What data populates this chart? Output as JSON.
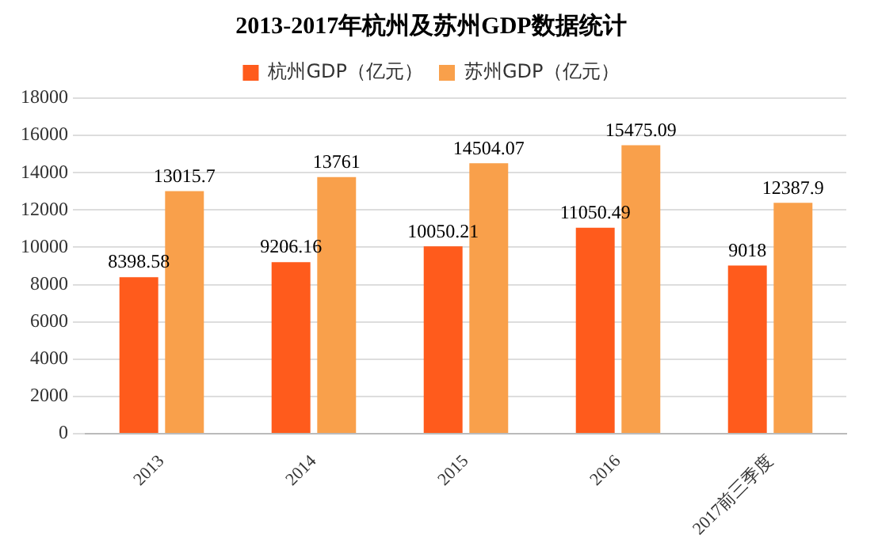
{
  "chart_data": {
    "type": "bar",
    "title": "2013-2017年杭州及苏州GDP数据统计",
    "categories": [
      "2013",
      "2014",
      "2015",
      "2016",
      "2017前三季度"
    ],
    "series": [
      {
        "name": "杭州GDP（亿元）",
        "color": "#ff5b1c",
        "values": [
          8398.58,
          9206.16,
          10050.21,
          11050.49,
          9018
        ]
      },
      {
        "name": "苏州GDP（亿元）",
        "color": "#f9a04b",
        "values": [
          13015.7,
          13761,
          14504.07,
          15475.09,
          12387.9
        ]
      }
    ],
    "ylim": [
      0,
      18000
    ],
    "yticks": [
      0,
      2000,
      4000,
      6000,
      8000,
      10000,
      12000,
      14000,
      16000,
      18000
    ],
    "grid": "y",
    "legend": "top",
    "data_labels": true
  }
}
